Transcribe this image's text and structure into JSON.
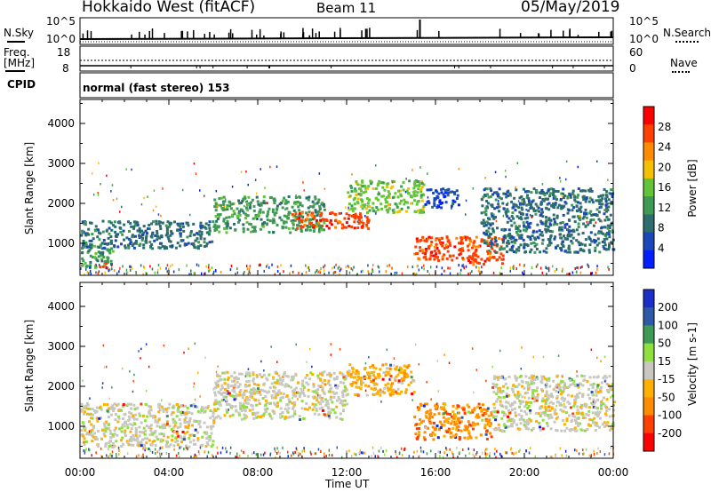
{
  "header": {
    "station": "Hokkaido West (fitACF)",
    "beam": "Beam 11",
    "date": "05/May/2019"
  },
  "noise_panel": {
    "left_label": "N.Sky",
    "right_label": "N.Search",
    "left_ticks": [
      "10^5",
      "10^0"
    ],
    "right_ticks": [
      "10^5",
      "10^0"
    ]
  },
  "freq_panel": {
    "left_label_1": "Freq.",
    "left_label_2": "[MHz]",
    "left_ticks": [
      "18",
      "8"
    ],
    "right_label": "Nave",
    "right_ticks": [
      "60",
      "0"
    ]
  },
  "cpid": {
    "label": "CPID",
    "value": "normal (fast stereo) 153"
  },
  "colors": {
    "power_scale": [
      "#0020ff",
      "#1a48b8",
      "#2d6d6d",
      "#3f9a55",
      "#63c43a",
      "#f5c000",
      "#ff8c00",
      "#ff4000",
      "#ff0000"
    ],
    "velocity_scale": [
      "#ff0000",
      "#ff4000",
      "#ff8c00",
      "#ffb000",
      "#c8c8c0",
      "#8ee040",
      "#3f9a55",
      "#2d5aa8",
      "#1a2fc8"
    ]
  },
  "chart_data": [
    {
      "type": "heatmap",
      "name_ref": "power",
      "ylabel": "Slant Range [km]",
      "yticks": [
        "1000",
        "2000",
        "3000",
        "4000"
      ],
      "ylim": [
        200,
        4600
      ],
      "xlim": [
        0,
        24
      ],
      "colorbar_label": "Power [dB]",
      "colorbar_ticks": [
        "4",
        "8",
        "12",
        "16",
        "20",
        "24",
        "28"
      ],
      "echo_regions": [
        {
          "t0": 0,
          "t1": 1.5,
          "r0": 400,
          "r1": 1000,
          "value_db": 14
        },
        {
          "t0": 0.8,
          "t1": 1.2,
          "r0": 400,
          "r1": 600,
          "value_db": 28
        },
        {
          "t0": 0,
          "t1": 6,
          "r0": 900,
          "r1": 1600,
          "value_db": 10
        },
        {
          "t0": 6,
          "t1": 11,
          "r0": 1300,
          "r1": 2200,
          "value_db": 14
        },
        {
          "t0": 9.5,
          "t1": 13,
          "r0": 1400,
          "r1": 1800,
          "value_db": 28
        },
        {
          "t0": 12,
          "t1": 15.5,
          "r0": 1800,
          "r1": 2600,
          "value_db": 16
        },
        {
          "t0": 15.5,
          "t1": 17,
          "r0": 1900,
          "r1": 2400,
          "value_db": 8
        },
        {
          "t0": 15,
          "t1": 19,
          "r0": 600,
          "r1": 1200,
          "value_db": 26
        },
        {
          "t0": 17.5,
          "t1": 19,
          "r0": 500,
          "r1": 700,
          "value_db": 28
        },
        {
          "t0": 18,
          "t1": 24,
          "r0": 800,
          "r1": 2400,
          "value_db": 12
        }
      ]
    },
    {
      "type": "heatmap",
      "name_ref": "velocity",
      "ylabel": "Slant Range [km]",
      "yticks": [
        "1000",
        "2000",
        "3000",
        "4000"
      ],
      "ylim": [
        200,
        4600
      ],
      "xlim": [
        0,
        24
      ],
      "xlabel": "Time UT",
      "xticks": [
        "00:00",
        "04:00",
        "08:00",
        "12:00",
        "16:00",
        "20:00",
        "00:00"
      ],
      "colorbar_label": "Velocity [m s-1]",
      "colorbar_ticks": [
        "200",
        "100",
        "50",
        "15",
        "-15",
        "-50",
        "-100",
        "-200"
      ],
      "echo_regions": [
        {
          "t0": 0,
          "t1": 6,
          "r0": 500,
          "r1": 1600,
          "value_ms": 0
        },
        {
          "t0": 6,
          "t1": 12,
          "r0": 1200,
          "r1": 2400,
          "value_ms": 0
        },
        {
          "t0": 12,
          "t1": 15,
          "r0": 1800,
          "r1": 2600,
          "value_ms": -40
        },
        {
          "t0": 15,
          "t1": 18.5,
          "r0": 700,
          "r1": 1600,
          "value_ms": -60
        },
        {
          "t0": 18.5,
          "t1": 24,
          "r0": 900,
          "r1": 2300,
          "value_ms": 0
        }
      ]
    }
  ]
}
